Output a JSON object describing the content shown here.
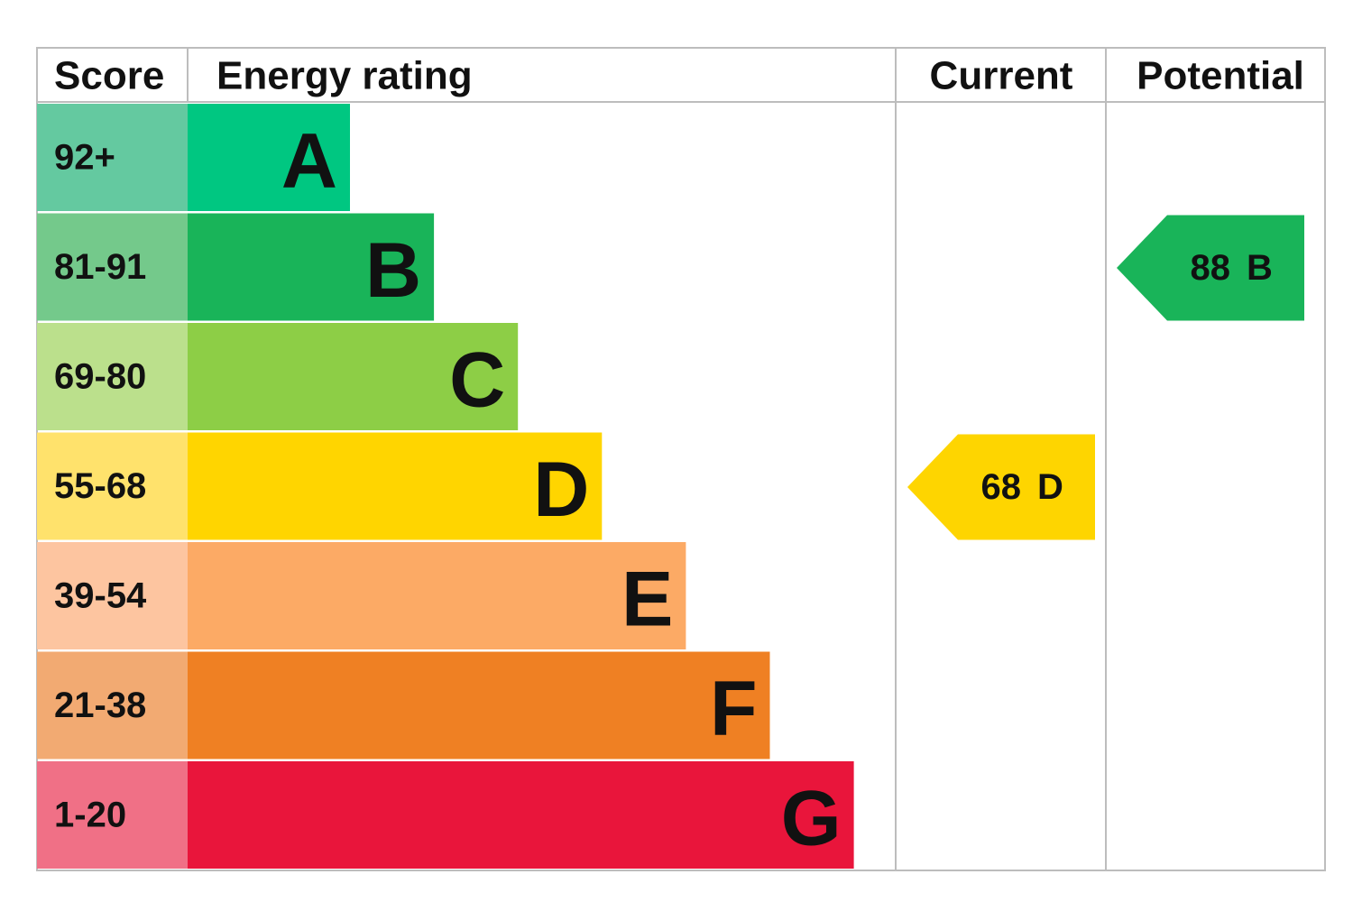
{
  "header": {
    "score": "Score",
    "energy_rating": "Energy rating",
    "current": "Current",
    "potential": "Potential"
  },
  "bands": [
    {
      "score": "92+",
      "letter": "A",
      "color": "#00c781",
      "score_color": "#64c9a0"
    },
    {
      "score": "81-91",
      "letter": "B",
      "color": "#19b459",
      "score_color": "#74c98b"
    },
    {
      "score": "69-80",
      "letter": "C",
      "color": "#8dce46",
      "score_color": "#bbe08c"
    },
    {
      "score": "55-68",
      "letter": "D",
      "color": "#ffd500",
      "score_color": "#ffe26c"
    },
    {
      "score": "39-54",
      "letter": "E",
      "color": "#fcaa65",
      "score_color": "#fdc5a0"
    },
    {
      "score": "21-38",
      "letter": "F",
      "color": "#ef8023",
      "score_color": "#f2aa72"
    },
    {
      "score": "1-20",
      "letter": "G",
      "color": "#e9153b",
      "score_color": "#f07086"
    }
  ],
  "current": {
    "value": 68,
    "letter": "D",
    "color": "#fed500"
  },
  "potential": {
    "value": 88,
    "letter": "B",
    "color": "#19b459"
  }
}
